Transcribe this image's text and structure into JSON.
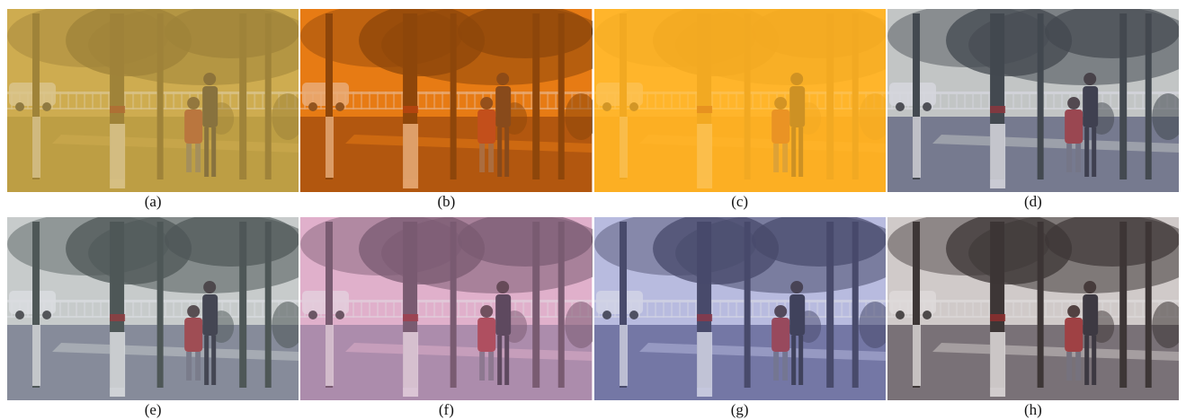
{
  "panels": [
    {
      "label": "(a)",
      "tint": "#c9a74a",
      "tint_opacity": 0.62,
      "ground": "#a8923c",
      "sky": "#d6b65a",
      "tree": "#5a4a1e"
    },
    {
      "label": "(b)",
      "tint": "#e0700f",
      "tint_opacity": 0.55,
      "ground": "#7a3a10",
      "sky": "#f08a1c",
      "tree": "#2a1606"
    },
    {
      "label": "(c)",
      "tint": "#ffb222",
      "tint_opacity": 0.78,
      "ground": "#f0a526",
      "sky": "#ffc04a",
      "tree": "#c48a22"
    },
    {
      "label": "(d)",
      "tint": "#8d93a8",
      "tint_opacity": 0.3,
      "ground": "#6c7084",
      "sky": "#d9dcd2",
      "tree": "#232a2a"
    },
    {
      "label": "(e)",
      "tint": "#9ea6b4",
      "tint_opacity": 0.3,
      "ground": "#7b8090",
      "sky": "#d8dcd6",
      "tree": "#2c3530"
    },
    {
      "label": "(f)",
      "tint": "#c991b6",
      "tint_opacity": 0.38,
      "ground": "#9c8aa6",
      "sky": "#efc4d8",
      "tree": "#4a3a48"
    },
    {
      "label": "(g)",
      "tint": "#8a8ec6",
      "tint_opacity": 0.32,
      "ground": "#6a6c96",
      "sky": "#cfd0ea",
      "tree": "#2a2a40"
    },
    {
      "label": "(h)",
      "tint": "#9a8a8a",
      "tint_opacity": 0.25,
      "ground": "#6e6870",
      "sky": "#e2dfde",
      "tree": "#1e1a1a"
    }
  ]
}
